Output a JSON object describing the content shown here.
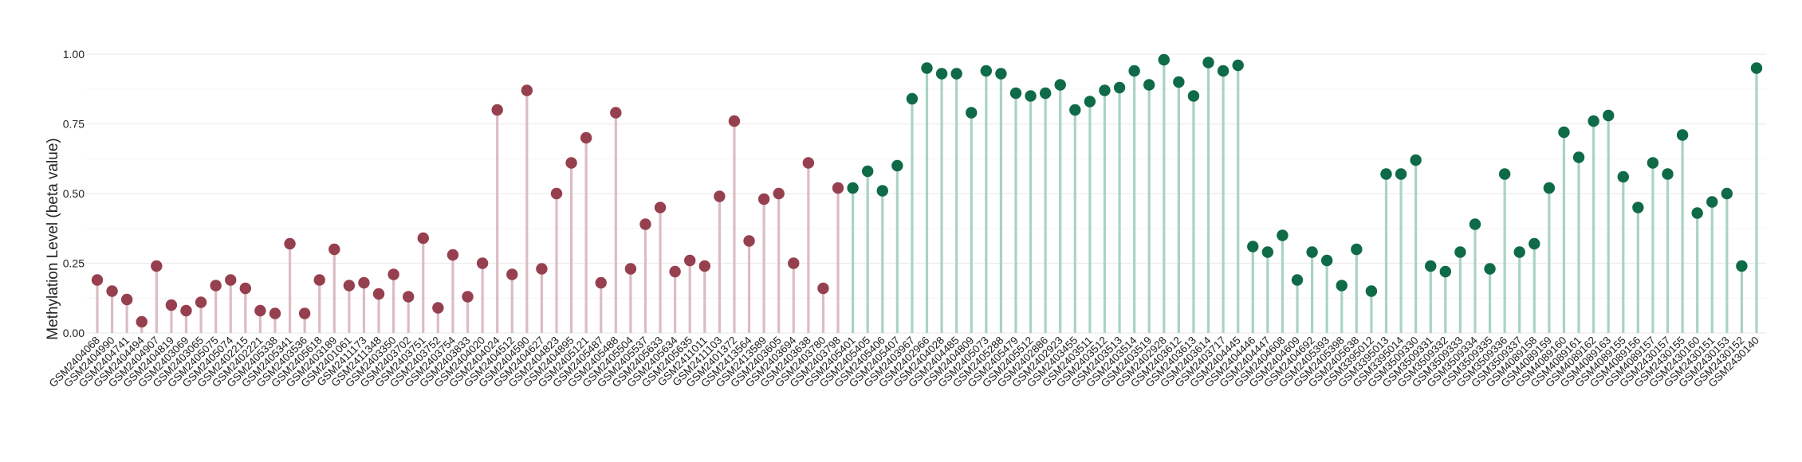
{
  "chart_data": {
    "type": "lollipop",
    "title": "",
    "xlabel": "",
    "ylabel": "Methylation Level (beta value)",
    "ylim": [
      0,
      1.0
    ],
    "yticks": [
      0.0,
      0.25,
      0.5,
      0.75,
      1.0
    ],
    "ytick_labels": [
      "0.00",
      "0.25",
      "0.50",
      "0.75",
      "1.00"
    ],
    "grid": true,
    "legend": "none",
    "group_colors": {
      "red": {
        "stem": "#dcbcc4",
        "dot": "#96404f"
      },
      "green": {
        "stem": "#a9d3c2",
        "dot": "#0f6b47"
      }
    },
    "points": [
      {
        "label": "GSM2404068",
        "value": 0.19,
        "group": "red"
      },
      {
        "label": "GSM2404990",
        "value": 0.15,
        "group": "red"
      },
      {
        "label": "GSM2404741",
        "value": 0.12,
        "group": "red"
      },
      {
        "label": "GSM2404494",
        "value": 0.04,
        "group": "red"
      },
      {
        "label": "GSM2404907",
        "value": 0.24,
        "group": "red"
      },
      {
        "label": "GSM2404819",
        "value": 0.1,
        "group": "red"
      },
      {
        "label": "GSM2403069",
        "value": 0.08,
        "group": "red"
      },
      {
        "label": "GSM2403065",
        "value": 0.11,
        "group": "red"
      },
      {
        "label": "GSM2405075",
        "value": 0.17,
        "group": "red"
      },
      {
        "label": "GSM2405074",
        "value": 0.19,
        "group": "red"
      },
      {
        "label": "GSM2402215",
        "value": 0.16,
        "group": "red"
      },
      {
        "label": "GSM2402221",
        "value": 0.08,
        "group": "red"
      },
      {
        "label": "GSM2405338",
        "value": 0.07,
        "group": "red"
      },
      {
        "label": "GSM2405341",
        "value": 0.32,
        "group": "red"
      },
      {
        "label": "GSM2403536",
        "value": 0.07,
        "group": "red"
      },
      {
        "label": "GSM2405618",
        "value": 0.19,
        "group": "red"
      },
      {
        "label": "GSM2403189",
        "value": 0.3,
        "group": "red"
      },
      {
        "label": "GSM2401061",
        "value": 0.17,
        "group": "red"
      },
      {
        "label": "GSM2411173",
        "value": 0.18,
        "group": "red"
      },
      {
        "label": "GSM2411348",
        "value": 0.14,
        "group": "red"
      },
      {
        "label": "GSM2403350",
        "value": 0.21,
        "group": "red"
      },
      {
        "label": "GSM2403702",
        "value": 0.13,
        "group": "red"
      },
      {
        "label": "GSM2403751",
        "value": 0.34,
        "group": "red"
      },
      {
        "label": "GSM2403752",
        "value": 0.09,
        "group": "red"
      },
      {
        "label": "GSM2403754",
        "value": 0.28,
        "group": "red"
      },
      {
        "label": "GSM2403833",
        "value": 0.13,
        "group": "red"
      },
      {
        "label": "GSM2404020",
        "value": 0.25,
        "group": "red"
      },
      {
        "label": "GSM2404024",
        "value": 0.8,
        "group": "red"
      },
      {
        "label": "GSM2404512",
        "value": 0.21,
        "group": "red"
      },
      {
        "label": "GSM2404590",
        "value": 0.87,
        "group": "red"
      },
      {
        "label": "GSM2404627",
        "value": 0.23,
        "group": "red"
      },
      {
        "label": "GSM2404823",
        "value": 0.5,
        "group": "red"
      },
      {
        "label": "GSM2404895",
        "value": 0.61,
        "group": "red"
      },
      {
        "label": "GSM2405121",
        "value": 0.7,
        "group": "red"
      },
      {
        "label": "GSM2405487",
        "value": 0.18,
        "group": "red"
      },
      {
        "label": "GSM2405488",
        "value": 0.79,
        "group": "red"
      },
      {
        "label": "GSM2405504",
        "value": 0.23,
        "group": "red"
      },
      {
        "label": "GSM2405537",
        "value": 0.39,
        "group": "red"
      },
      {
        "label": "GSM2405633",
        "value": 0.45,
        "group": "red"
      },
      {
        "label": "GSM2405634",
        "value": 0.22,
        "group": "red"
      },
      {
        "label": "GSM2405635",
        "value": 0.26,
        "group": "red"
      },
      {
        "label": "GSM2411011",
        "value": 0.24,
        "group": "red"
      },
      {
        "label": "GSM2411103",
        "value": 0.49,
        "group": "red"
      },
      {
        "label": "GSM2401372",
        "value": 0.76,
        "group": "red"
      },
      {
        "label": "GSM2413564",
        "value": 0.33,
        "group": "red"
      },
      {
        "label": "GSM2413589",
        "value": 0.48,
        "group": "red"
      },
      {
        "label": "GSM2403605",
        "value": 0.5,
        "group": "red"
      },
      {
        "label": "GSM2403694",
        "value": 0.25,
        "group": "red"
      },
      {
        "label": "GSM2403638",
        "value": 0.61,
        "group": "red"
      },
      {
        "label": "GSM2403780",
        "value": 0.16,
        "group": "red"
      },
      {
        "label": "GSM2403798",
        "value": 0.52,
        "group": "red"
      },
      {
        "label": "GSM2405401",
        "value": 0.52,
        "group": "green"
      },
      {
        "label": "GSM2405405",
        "value": 0.58,
        "group": "green"
      },
      {
        "label": "GSM2405406",
        "value": 0.51,
        "group": "green"
      },
      {
        "label": "GSM2405407",
        "value": 0.6,
        "group": "green"
      },
      {
        "label": "GSM2403967",
        "value": 0.84,
        "group": "green"
      },
      {
        "label": "GSM2402966",
        "value": 0.95,
        "group": "green"
      },
      {
        "label": "GSM2404028",
        "value": 0.93,
        "group": "green"
      },
      {
        "label": "GSM2404485",
        "value": 0.93,
        "group": "green"
      },
      {
        "label": "GSM2404809",
        "value": 0.79,
        "group": "green"
      },
      {
        "label": "GSM2405073",
        "value": 0.94,
        "group": "green"
      },
      {
        "label": "GSM2405288",
        "value": 0.93,
        "group": "green"
      },
      {
        "label": "GSM2405479",
        "value": 0.86,
        "group": "green"
      },
      {
        "label": "GSM2405512",
        "value": 0.85,
        "group": "green"
      },
      {
        "label": "GSM2402886",
        "value": 0.86,
        "group": "green"
      },
      {
        "label": "GSM2402923",
        "value": 0.89,
        "group": "green"
      },
      {
        "label": "GSM2403455",
        "value": 0.8,
        "group": "green"
      },
      {
        "label": "GSM2403511",
        "value": 0.83,
        "group": "green"
      },
      {
        "label": "GSM2403512",
        "value": 0.87,
        "group": "green"
      },
      {
        "label": "GSM2403513",
        "value": 0.88,
        "group": "green"
      },
      {
        "label": "GSM2403514",
        "value": 0.94,
        "group": "green"
      },
      {
        "label": "GSM2403519",
        "value": 0.89,
        "group": "green"
      },
      {
        "label": "GSM2402928",
        "value": 0.98,
        "group": "green"
      },
      {
        "label": "GSM2403612",
        "value": 0.9,
        "group": "green"
      },
      {
        "label": "GSM2403613",
        "value": 0.85,
        "group": "green"
      },
      {
        "label": "GSM2403614",
        "value": 0.97,
        "group": "green"
      },
      {
        "label": "GSM2403717",
        "value": 0.94,
        "group": "green"
      },
      {
        "label": "GSM2404445",
        "value": 0.96,
        "group": "green"
      },
      {
        "label": "GSM2404446",
        "value": 0.31,
        "group": "green"
      },
      {
        "label": "GSM2404447",
        "value": 0.29,
        "group": "green"
      },
      {
        "label": "GSM2404608",
        "value": 0.35,
        "group": "green"
      },
      {
        "label": "GSM2404609",
        "value": 0.19,
        "group": "green"
      },
      {
        "label": "GSM2404692",
        "value": 0.29,
        "group": "green"
      },
      {
        "label": "GSM2405393",
        "value": 0.26,
        "group": "green"
      },
      {
        "label": "GSM2405398",
        "value": 0.17,
        "group": "green"
      },
      {
        "label": "GSM2405638",
        "value": 0.3,
        "group": "green"
      },
      {
        "label": "GSM3395012",
        "value": 0.15,
        "group": "green"
      },
      {
        "label": "GSM3395013",
        "value": 0.57,
        "group": "green"
      },
      {
        "label": "GSM3395014",
        "value": 0.57,
        "group": "green"
      },
      {
        "label": "GSM3509330",
        "value": 0.62,
        "group": "green"
      },
      {
        "label": "GSM3509331",
        "value": 0.24,
        "group": "green"
      },
      {
        "label": "GSM3509332",
        "value": 0.22,
        "group": "green"
      },
      {
        "label": "GSM3509333",
        "value": 0.29,
        "group": "green"
      },
      {
        "label": "GSM3509334",
        "value": 0.39,
        "group": "green"
      },
      {
        "label": "GSM3509335",
        "value": 0.23,
        "group": "green"
      },
      {
        "label": "GSM3509336",
        "value": 0.57,
        "group": "green"
      },
      {
        "label": "GSM3509337",
        "value": 0.29,
        "group": "green"
      },
      {
        "label": "GSM4089158",
        "value": 0.32,
        "group": "green"
      },
      {
        "label": "GSM4089159",
        "value": 0.52,
        "group": "green"
      },
      {
        "label": "GSM4089160",
        "value": 0.72,
        "group": "green"
      },
      {
        "label": "GSM4089161",
        "value": 0.63,
        "group": "green"
      },
      {
        "label": "GSM4089162",
        "value": 0.76,
        "group": "green"
      },
      {
        "label": "GSM4089163",
        "value": 0.78,
        "group": "green"
      },
      {
        "label": "GSM4089155",
        "value": 0.56,
        "group": "green"
      },
      {
        "label": "GSM4089156",
        "value": 0.45,
        "group": "green"
      },
      {
        "label": "GSM4089157",
        "value": 0.61,
        "group": "green"
      },
      {
        "label": "GSM2430157",
        "value": 0.57,
        "group": "green"
      },
      {
        "label": "GSM2430155",
        "value": 0.71,
        "group": "green"
      },
      {
        "label": "GSM2430160",
        "value": 0.43,
        "group": "green"
      },
      {
        "label": "GSM2430151",
        "value": 0.47,
        "group": "green"
      },
      {
        "label": "GSM2430153",
        "value": 0.5,
        "group": "green"
      },
      {
        "label": "GSM2430152",
        "value": 0.24,
        "group": "green"
      },
      {
        "label": "GSM2430140",
        "value": 0.95,
        "group": "green"
      }
    ]
  }
}
